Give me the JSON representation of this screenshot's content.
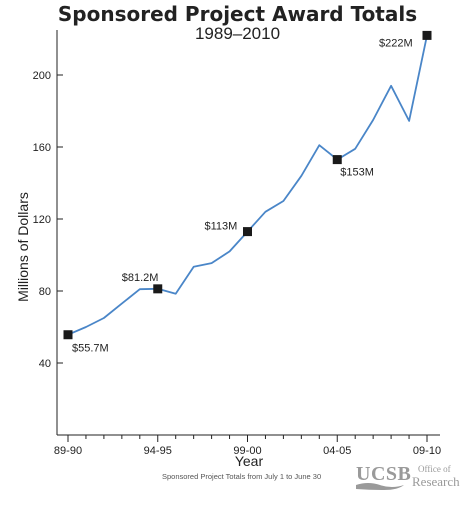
{
  "chart_data": {
    "type": "line",
    "title": "Sponsored Project Award Totals",
    "subtitle": "1989–2010",
    "xlabel": "Year",
    "ylabel": "Millions of Dollars",
    "ylim": [
      0,
      225
    ],
    "yticks": [
      40,
      80,
      120,
      160,
      200
    ],
    "xtick_labels": [
      {
        "index": 0,
        "label": "89-90"
      },
      {
        "index": 5,
        "label": "94-95"
      },
      {
        "index": 10,
        "label": "99-00"
      },
      {
        "index": 15,
        "label": "04-05"
      },
      {
        "index": 20,
        "label": "09-10"
      }
    ],
    "grid": false,
    "series": [
      {
        "color": "#4a86c8",
        "x": [
          "89-90",
          "90-91",
          "91-92",
          "92-93",
          "93-94",
          "94-95",
          "95-96",
          "96-97",
          "97-98",
          "98-99",
          "99-00",
          "00-01",
          "01-02",
          "02-03",
          "03-04",
          "04-05",
          "05-06",
          "06-07",
          "07-08",
          "08-09",
          "09-10"
        ],
        "values": [
          55.7,
          60,
          65,
          73,
          81,
          81.2,
          78.5,
          93.5,
          95.5,
          102,
          113,
          124,
          130,
          144,
          161,
          153,
          159,
          175,
          194,
          174.5,
          222
        ]
      }
    ],
    "markers": [
      {
        "index": 0,
        "value": 55.7,
        "label": "$55.7M"
      },
      {
        "index": 5,
        "value": 81.2,
        "label": "$81.2M"
      },
      {
        "index": 10,
        "value": 113,
        "label": "$113M"
      },
      {
        "index": 15,
        "value": 153,
        "label": "$153M"
      },
      {
        "index": 20,
        "value": 222,
        "label": "$222M"
      }
    ]
  },
  "footnote": "Sponsored Project Totals from July 1 to June 30",
  "logo": {
    "brand": "UCSB",
    "line1": "Office of",
    "line2": "Research",
    "color": "#9a9a9a"
  }
}
